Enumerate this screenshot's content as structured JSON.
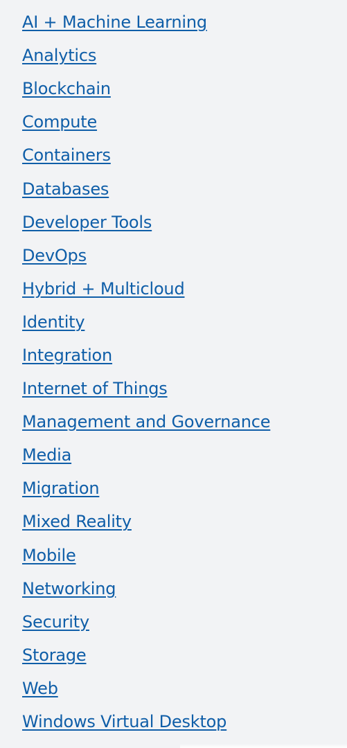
{
  "categories": [
    {
      "label": "AI + Machine Learning"
    },
    {
      "label": "Analytics"
    },
    {
      "label": "Blockchain"
    },
    {
      "label": "Compute"
    },
    {
      "label": "Containers"
    },
    {
      "label": "Databases"
    },
    {
      "label": "Developer Tools"
    },
    {
      "label": "DevOps"
    },
    {
      "label": "Hybrid + Multicloud"
    },
    {
      "label": "Identity"
    },
    {
      "label": "Integration"
    },
    {
      "label": "Internet of Things"
    },
    {
      "label": "Management and Governance"
    },
    {
      "label": "Media"
    },
    {
      "label": "Migration"
    },
    {
      "label": "Mixed Reality"
    },
    {
      "label": "Mobile"
    },
    {
      "label": "Networking"
    },
    {
      "label": "Security"
    },
    {
      "label": "Storage"
    },
    {
      "label": "Web"
    },
    {
      "label": "Windows Virtual Desktop"
    }
  ],
  "colors": {
    "background": "#f2f3f5",
    "link": "#0f5ea8"
  }
}
